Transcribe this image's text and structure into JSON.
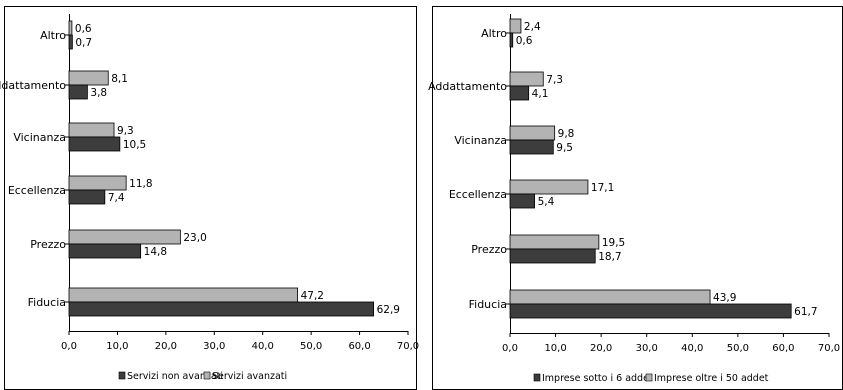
{
  "chart_data": [
    {
      "type": "bar",
      "orientation": "horizontal",
      "categories": [
        "Altro",
        "Addattamento",
        "Vicinanza",
        "Eccellenza",
        "Prezzo",
        "Fiducia"
      ],
      "series": [
        {
          "name": "Servizi avanzati",
          "values": [
            0.6,
            8.1,
            9.3,
            11.8,
            23.0,
            47.2
          ],
          "color": "#b3b3b3"
        },
        {
          "name": "Servizi non avanzati",
          "values": [
            0.7,
            3.8,
            10.5,
            7.4,
            14.8,
            62.9
          ],
          "color": "#3d3d3d"
        }
      ],
      "data_labels": [
        [
          "0,6",
          "8,1",
          "9,3",
          "11,8",
          "23,0",
          "47,2"
        ],
        [
          "0,7",
          "3,8",
          "10,5",
          "7,4",
          "14,8",
          "62,9"
        ]
      ],
      "legend": {
        "position": "bottom",
        "entries": [
          "Servizi non avanzati",
          "Servizi avanzati"
        ]
      },
      "xlim": [
        0,
        70
      ],
      "ticks": [
        0,
        10,
        20,
        30,
        40,
        50,
        60,
        70
      ],
      "tick_labels": [
        "0,0",
        "10,0",
        "20,0",
        "30,0",
        "40,0",
        "50,0",
        "60,0",
        "70,0"
      ],
      "grid": false,
      "title": "",
      "xlabel": "",
      "ylabel": ""
    },
    {
      "type": "bar",
      "orientation": "horizontal",
      "categories": [
        "Altro",
        "Addattamento",
        "Vicinanza",
        "Eccellenza",
        "Prezzo",
        "Fiducia"
      ],
      "series": [
        {
          "name": "Imprese oltre i 50 addet",
          "values": [
            2.4,
            7.3,
            9.8,
            17.1,
            19.5,
            43.9
          ],
          "color": "#b3b3b3"
        },
        {
          "name": "Imprese sotto i 6 addet",
          "values": [
            0.6,
            4.1,
            9.5,
            5.4,
            18.7,
            61.7
          ],
          "color": "#3d3d3d"
        }
      ],
      "data_labels": [
        [
          "2,4",
          "7,3",
          "9,8",
          "17,1",
          "19,5",
          "43,9"
        ],
        [
          "0,6",
          "4,1",
          "9,5",
          "5,4",
          "18,7",
          "61,7"
        ]
      ],
      "legend": {
        "position": "bottom",
        "entries": [
          "Imprese sotto i 6 addet",
          "Imprese oltre i 50 addet"
        ]
      },
      "xlim": [
        0,
        70
      ],
      "ticks": [
        0,
        10,
        20,
        30,
        40,
        50,
        60,
        70
      ],
      "tick_labels": [
        "0,0",
        "10,0",
        "20,0",
        "30,0",
        "40,0",
        "50,0",
        "60,0",
        "70,0"
      ],
      "grid": false,
      "title": "",
      "xlabel": "",
      "ylabel": ""
    }
  ]
}
